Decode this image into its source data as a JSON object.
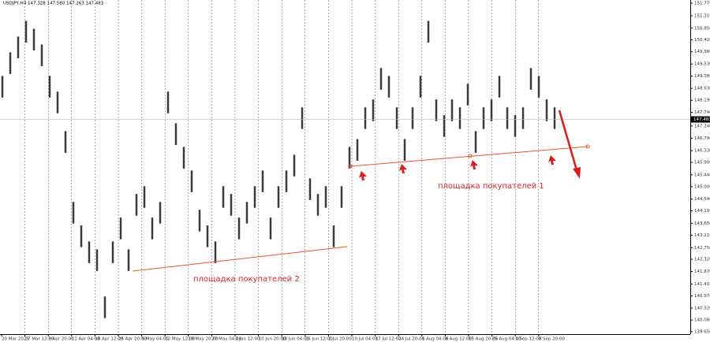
{
  "chart_data": {
    "type": "ohlc-range",
    "title": "USDJPY,H4  147.328 147.580 147.263 147.483",
    "annotations": [
      "площадка покупателей 1",
      "площадка покупателей 2"
    ],
    "last_price": 147.483,
    "color": "#3a3a3a",
    "xticks": [
      "20 Mar 2025",
      "27 Mar 12:00",
      "3 Apr 20:00",
      "11 Apr 04:00",
      "18 Apr 12:00",
      "25 Apr 20:00",
      "5 May 04:00",
      "12 May 12:00",
      "19 May 20:00",
      "27 May 04:00",
      "3 Jun 12:00",
      "10 Jun 20:00",
      "18 Jun 04:00",
      "25 Jun 12:00",
      "2 Jul 20:00",
      "10 Jul 04:00",
      "17 Jul 12:00",
      "24 Jul 20:00",
      "1 Aug 04:00",
      "8 Aug 12:00",
      "15 Aug 20:00",
      "25 Aug 04:00",
      "1 Sep 12:00",
      "8 Sep 20:00"
    ],
    "high": [
      149.09,
      149.96,
      150.54,
      151.12,
      150.83,
      150.25,
      149.09,
      148.51,
      147.05,
      144.44,
      143.57,
      142.98,
      142.69,
      140.95,
      142.98,
      143.86,
      142.69,
      144.73,
      145.02,
      143.86,
      144.44,
      148.51,
      147.34,
      146.47,
      145.6,
      144.15,
      143.57,
      142.98,
      145.02,
      144.73,
      143.86,
      144.44,
      145.02,
      145.6,
      143.86,
      145.02,
      145.6,
      146.18,
      147.93,
      145.31,
      144.73,
      145.02,
      143.57,
      145.02,
      146.47,
      146.76,
      147.93,
      148.22,
      149.38,
      149.09,
      147.93,
      146.76,
      147.93,
      149.09,
      151.12,
      148.22,
      147.64,
      148.22,
      147.93,
      148.8,
      147.05,
      147.93,
      148.22,
      149.09,
      147.93,
      147.64,
      147.93,
      149.38,
      149.09,
      148.22,
      147.93
    ],
    "low": [
      148.29,
      149.16,
      149.74,
      150.32,
      150.03,
      149.45,
      148.29,
      147.71,
      146.25,
      143.64,
      142.77,
      142.18,
      141.89,
      140.15,
      142.18,
      143.06,
      141.89,
      143.93,
      144.22,
      143.06,
      143.64,
      147.71,
      146.54,
      145.67,
      144.8,
      143.35,
      142.77,
      142.18,
      144.22,
      143.93,
      143.06,
      143.64,
      144.22,
      144.8,
      143.06,
      144.22,
      144.8,
      145.38,
      147.13,
      144.51,
      143.93,
      144.22,
      142.77,
      144.22,
      145.67,
      145.96,
      147.13,
      147.42,
      148.58,
      148.29,
      147.13,
      145.96,
      147.13,
      148.29,
      150.32,
      147.42,
      146.84,
      147.42,
      147.13,
      148.0,
      146.25,
      147.13,
      147.42,
      148.29,
      147.13,
      146.84,
      147.13,
      148.58,
      148.29,
      147.42,
      147.13
    ],
    "ylim": [
      139.56,
      151.89
    ],
    "yticks": [
      {
        "value": 151.77,
        "label": "151.770"
      },
      {
        "value": 151.31,
        "label": "151.310"
      },
      {
        "value": 150.85,
        "label": "150.850"
      },
      {
        "value": 150.42,
        "label": "150.420"
      },
      {
        "value": 149.98,
        "label": "149.980"
      },
      {
        "value": 149.53,
        "label": "149.530"
      },
      {
        "value": 149.08,
        "label": "149.080"
      },
      {
        "value": 148.63,
        "label": "148.630"
      },
      {
        "value": 148.19,
        "label": "148.190"
      },
      {
        "value": 147.74,
        "label": "147.740"
      },
      {
        "value": 147.24,
        "label": "147.240"
      },
      {
        "value": 146.79,
        "label": "146.790"
      },
      {
        "value": 146.33,
        "label": "146.330"
      },
      {
        "value": 145.9,
        "label": "145.900"
      },
      {
        "value": 145.44,
        "label": "145.440"
      },
      {
        "value": 145,
        "label": "145.000"
      },
      {
        "value": 144.54,
        "label": "144.540"
      },
      {
        "value": 144.11,
        "label": "144.110"
      },
      {
        "value": 143.65,
        "label": "143.650"
      },
      {
        "value": 143.21,
        "label": "143.210"
      },
      {
        "value": 142.75,
        "label": "142.750"
      },
      {
        "value": 142.32,
        "label": "142.320"
      },
      {
        "value": 141.87,
        "label": "141.870"
      },
      {
        "value": 141.41,
        "label": "141.410"
      },
      {
        "value": 140.97,
        "label": "140.970"
      },
      {
        "value": 140.52,
        "label": "140.520"
      },
      {
        "value": 140.08,
        "label": "140.080"
      },
      {
        "value": 139.65,
        "label": "139.650"
      }
    ]
  }
}
